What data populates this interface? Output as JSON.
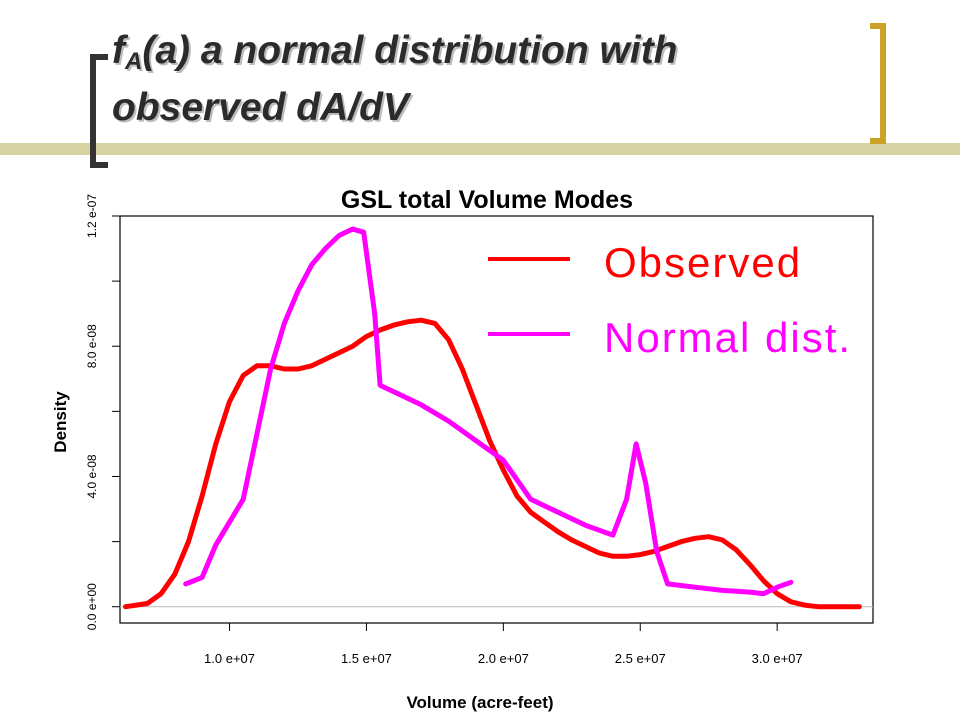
{
  "slide": {
    "title_prefix": "f",
    "title_subscript": "A",
    "title_line1_rest": "(a) a normal distribution with",
    "title_line2": "observed dA/dV",
    "accent_color": "#c9a227",
    "band_color": "#d8d3a4"
  },
  "chart_data": {
    "type": "line",
    "title": "GSL total Volume Modes",
    "xlabel": "Volume (acre-feet)",
    "ylabel": "Density",
    "xlim": [
      6000000,
      33500000
    ],
    "ylim": [
      -5e-09,
      1.2e-07
    ],
    "xticks": [
      10000000,
      15000000,
      20000000,
      25000000,
      30000000
    ],
    "xtick_labels": [
      "1.0 e+07",
      "1.5 e+07",
      "2.0 e+07",
      "2.5 e+07",
      "3.0 e+07"
    ],
    "yticks": [
      0,
      2e-08,
      4e-08,
      6e-08,
      8e-08,
      1e-07,
      1.2e-07
    ],
    "ytick_labels": [
      "0.0 e+00",
      "",
      "4.0 e-08",
      "",
      "8.0 e-08",
      "",
      "1.2 e-07"
    ],
    "baseline": 0,
    "legend_position": "top-right",
    "series": [
      {
        "name": "Observed",
        "color": "#ff0000",
        "x": [
          6200000,
          7000000,
          7500000,
          8000000,
          8500000,
          9000000,
          9500000,
          10000000,
          10500000,
          11000000,
          11500000,
          12000000,
          12500000,
          13000000,
          13500000,
          14000000,
          14500000,
          15000000,
          15500000,
          16000000,
          16500000,
          17000000,
          17500000,
          18000000,
          18500000,
          19000000,
          19500000,
          20000000,
          20500000,
          21000000,
          21500000,
          22000000,
          22500000,
          23000000,
          23500000,
          24000000,
          24500000,
          25000000,
          25500000,
          26000000,
          26500000,
          27000000,
          27500000,
          28000000,
          28500000,
          29000000,
          29500000,
          30000000,
          30500000,
          31000000,
          31500000,
          32000000,
          33000000
        ],
        "values": [
          0,
          1e-09,
          4e-09,
          1e-08,
          2e-08,
          3.4e-08,
          5e-08,
          6.3e-08,
          7.1e-08,
          7.4e-08,
          7.4e-08,
          7.3e-08,
          7.3e-08,
          7.4e-08,
          7.6e-08,
          7.8e-08,
          8e-08,
          8.3e-08,
          8.5e-08,
          8.65e-08,
          8.75e-08,
          8.8e-08,
          8.7e-08,
          8.2e-08,
          7.3e-08,
          6.2e-08,
          5.1e-08,
          4.2e-08,
          3.4e-08,
          2.9e-08,
          2.6e-08,
          2.3e-08,
          2.05e-08,
          1.85e-08,
          1.65e-08,
          1.55e-08,
          1.55e-08,
          1.6e-08,
          1.7e-08,
          1.85e-08,
          2e-08,
          2.1e-08,
          2.15e-08,
          2.05e-08,
          1.75e-08,
          1.3e-08,
          8e-09,
          4e-09,
          1.5e-09,
          5e-10,
          0,
          0,
          0
        ]
      },
      {
        "name": "Normal dist.",
        "color": "#ff00ff",
        "x": [
          8400000,
          9000000,
          9500000,
          10000000,
          10500000,
          11000000,
          11500000,
          12000000,
          12500000,
          13000000,
          13500000,
          14000000,
          14500000,
          14900000,
          15300000,
          15500000,
          16000000,
          17000000,
          18000000,
          19000000,
          20000000,
          21000000,
          22000000,
          23000000,
          24000000,
          24500000,
          24850000,
          25200000,
          25600000,
          26000000,
          27000000,
          28000000,
          29000000,
          29500000,
          30000000,
          30500000
        ],
        "values": [
          7e-09,
          9e-09,
          1.9e-08,
          2.6e-08,
          3.3e-08,
          5.3e-08,
          7.3e-08,
          8.7e-08,
          9.7e-08,
          1.05e-07,
          1.1e-07,
          1.14e-07,
          1.16e-07,
          1.15e-07,
          9e-08,
          6.8e-08,
          6.6e-08,
          6.2e-08,
          5.7e-08,
          5.1e-08,
          4.5e-08,
          3.3e-08,
          2.9e-08,
          2.5e-08,
          2.2e-08,
          3.3e-08,
          5e-08,
          3.8e-08,
          1.7e-08,
          7e-09,
          6e-09,
          5e-09,
          4.5e-09,
          4e-09,
          6e-09,
          7.5e-09
        ]
      }
    ]
  }
}
